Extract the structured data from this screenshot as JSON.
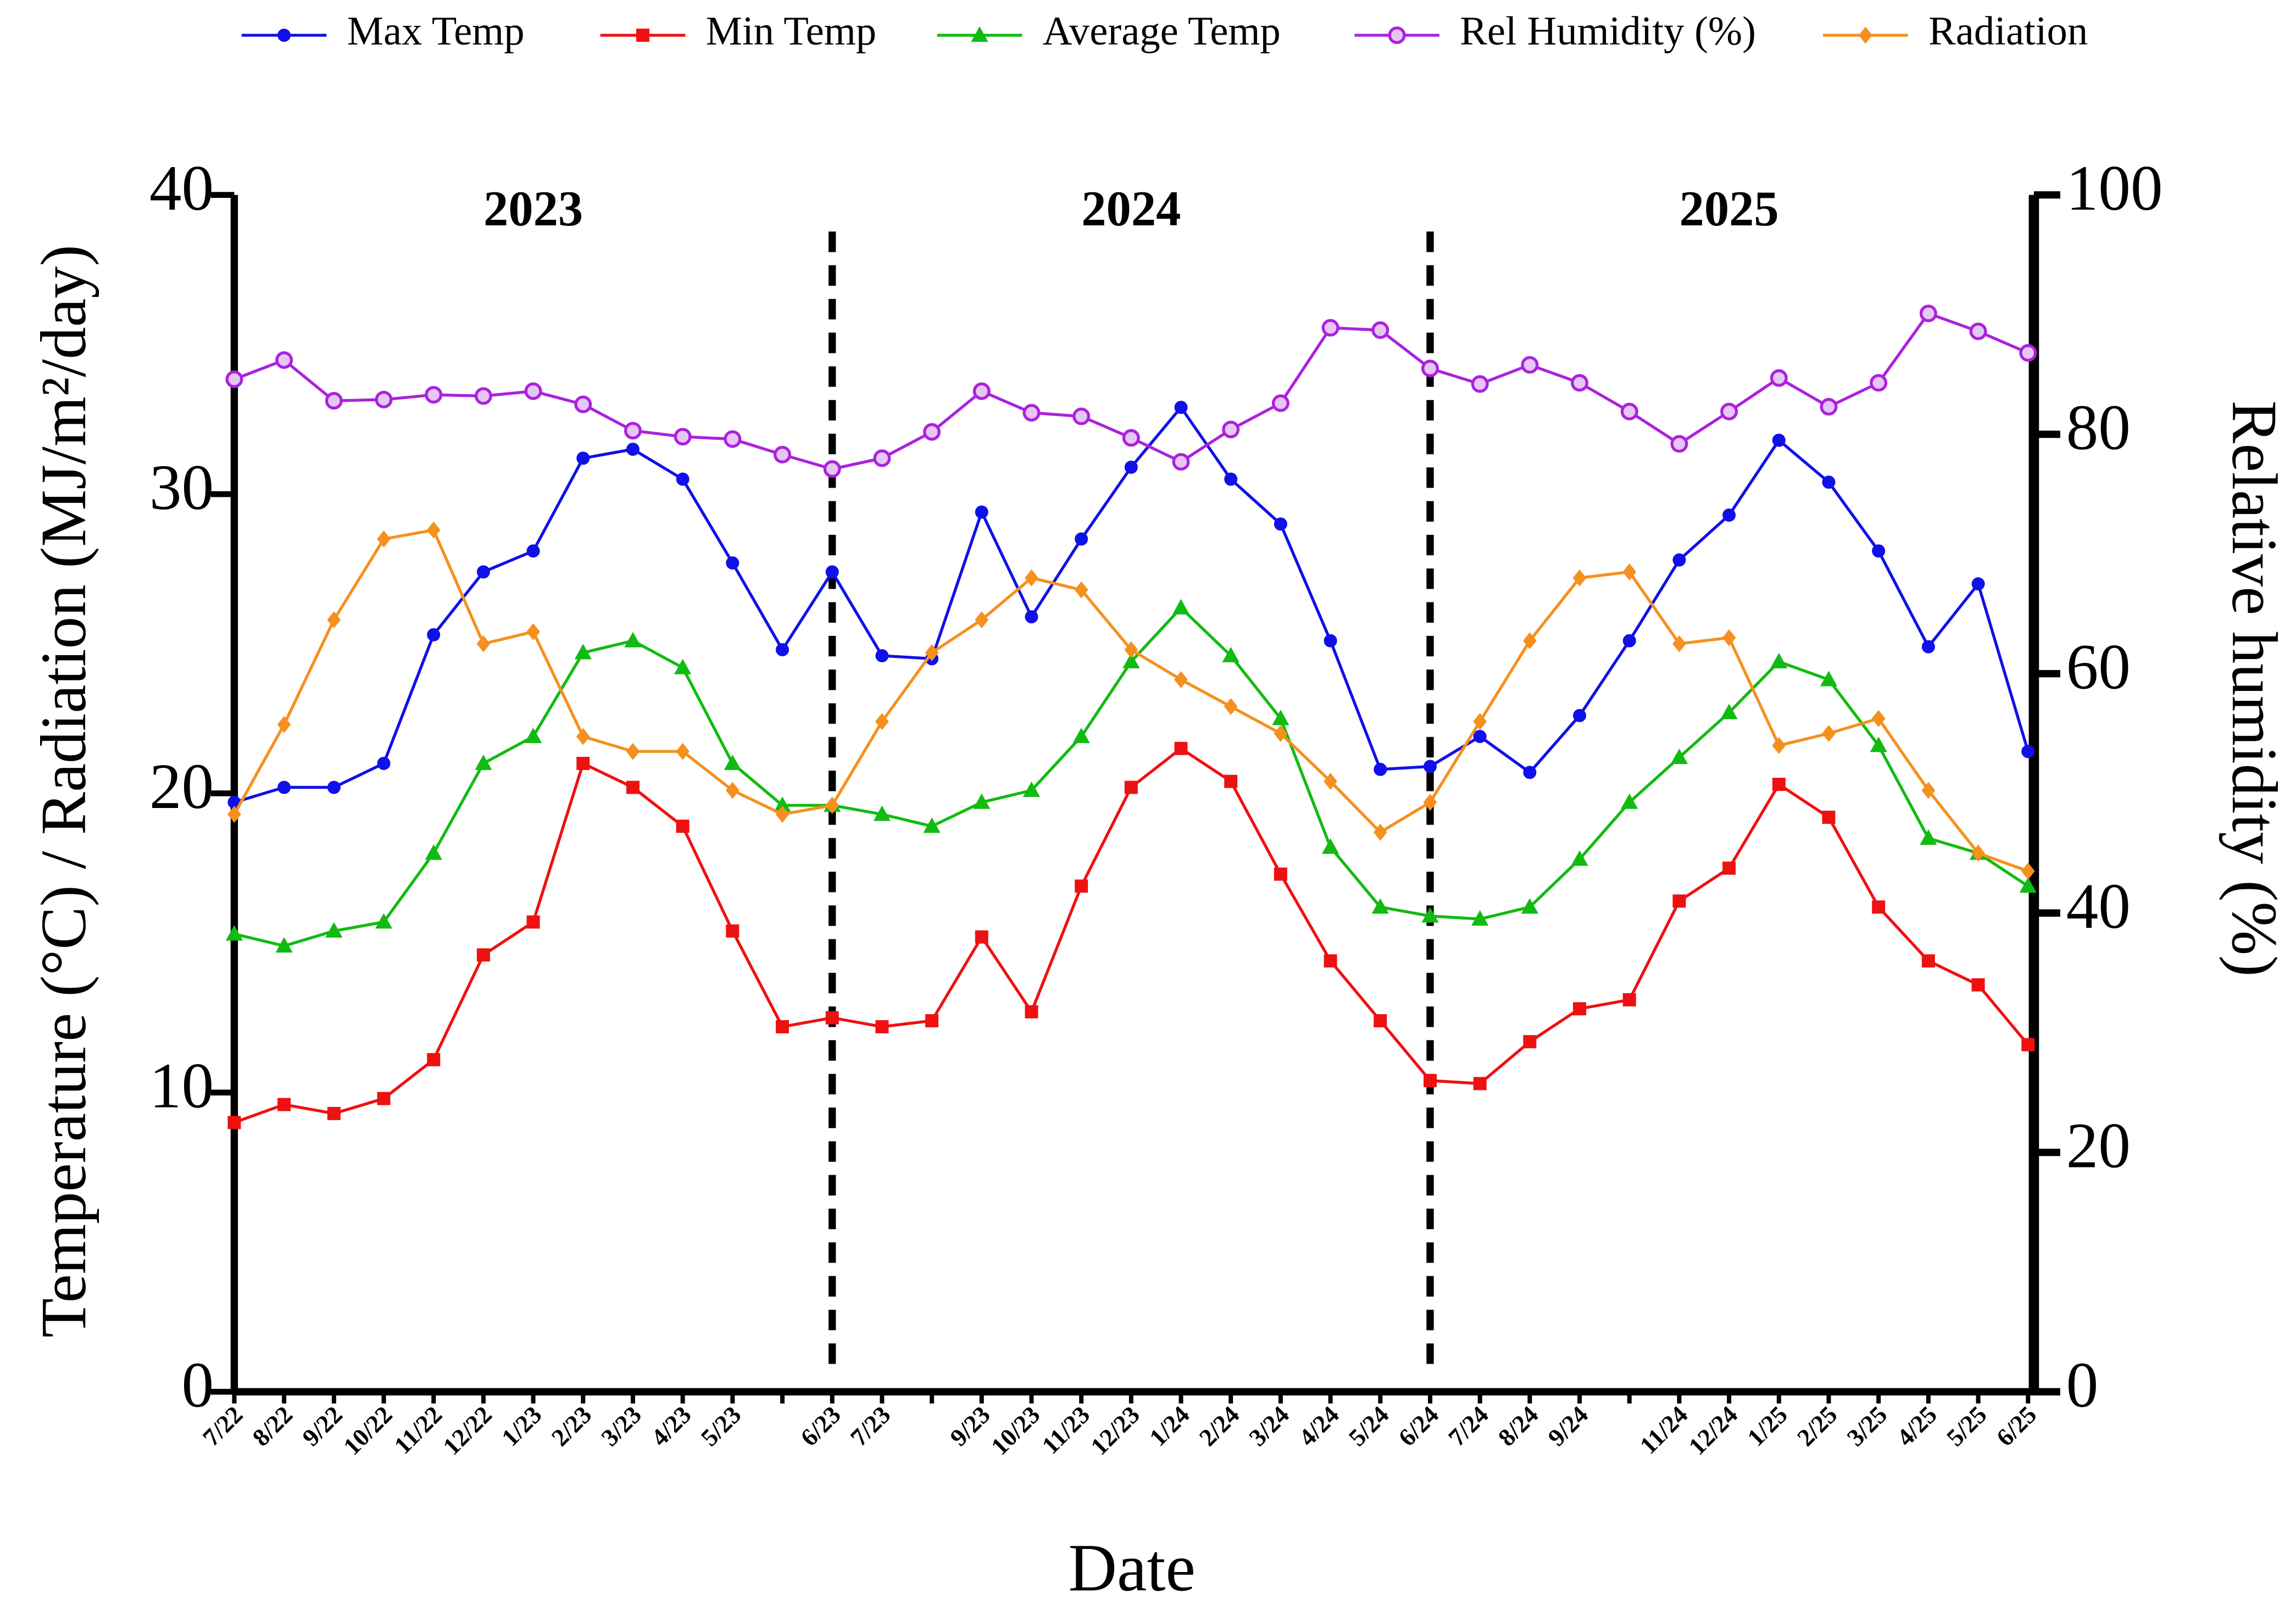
{
  "chart_data": {
    "type": "line",
    "y_label": "Temperature (°C)  /  Radiation (MJ/m²/day)",
    "y2_label": "Relative humidity (%)",
    "x_label": "Date",
    "annotations": [
      "2023",
      "2024",
      "2025"
    ],
    "categories": [
      "7/22",
      "8/22",
      "9/22",
      "10/22",
      "11/22",
      "12/22",
      "1/23",
      "2/23",
      "3/23",
      "4/23",
      "5/23",
      null,
      "6/23",
      "7/23",
      null,
      "9/23",
      "10/23",
      "11/23",
      "12/23",
      "1/24",
      "2/24",
      "3/24",
      "4/24",
      "5/24",
      "6/24",
      "7/24",
      "8/24",
      "9/24",
      null,
      "11/24",
      "12/24",
      "1/25",
      "2/25",
      "3/25",
      "4/25",
      "5/25",
      "6/25"
    ],
    "ylim": [
      0,
      40
    ],
    "yticks": [
      0,
      10,
      20,
      30,
      40
    ],
    "y2lim": [
      0,
      100
    ],
    "y2ticks": [
      0,
      20,
      40,
      60,
      80,
      100
    ],
    "series": [
      {
        "name": "Max Temp",
        "color": "#1010e8",
        "marker": "circle",
        "values": [
          19.7,
          20.2,
          20.2,
          21.0,
          25.3,
          27.4,
          28.1,
          31.2,
          31.5,
          30.5,
          27.7,
          24.8,
          27.4,
          24.6,
          24.5,
          29.4,
          25.9,
          28.5,
          30.9,
          32.9,
          30.5,
          29.0,
          25.1,
          20.8,
          20.9,
          21.9,
          20.7,
          22.6,
          25.1,
          27.8,
          29.3,
          31.8,
          30.4,
          28.1,
          24.9,
          27.0,
          21.4
        ]
      },
      {
        "name": "Min Temp",
        "color": "#ee1111",
        "marker": "square",
        "values": [
          9.0,
          9.6,
          9.3,
          9.8,
          11.1,
          14.6,
          15.7,
          21.0,
          20.2,
          18.9,
          15.4,
          12.2,
          12.5,
          12.2,
          12.4,
          15.2,
          12.7,
          16.9,
          20.2,
          21.5,
          20.4,
          17.3,
          14.4,
          12.4,
          10.4,
          10.3,
          11.7,
          12.8,
          13.1,
          16.4,
          17.5,
          20.3,
          19.2,
          16.2,
          14.4,
          13.6,
          11.6
        ]
      },
      {
        "name": "Average Temp",
        "color": "#11bb11",
        "marker": "triangle",
        "values": [
          15.3,
          14.9,
          15.4,
          15.7,
          18.0,
          21.0,
          21.9,
          24.7,
          25.1,
          24.2,
          21.0,
          19.6,
          19.6,
          19.3,
          18.9,
          19.7,
          20.1,
          21.9,
          24.4,
          26.2,
          24.6,
          22.5,
          18.2,
          16.2,
          15.9,
          15.8,
          16.2,
          17.8,
          19.7,
          21.2,
          22.7,
          24.4,
          23.8,
          21.6,
          18.5,
          18.0,
          16.9
        ]
      },
      {
        "name": "Rel Humidity (%)",
        "color": "#aa22dd",
        "marker": "ring",
        "axis": "y2",
        "values": [
          84.6,
          86.2,
          82.8,
          82.9,
          83.3,
          83.2,
          83.6,
          82.5,
          80.3,
          79.8,
          79.6,
          78.3,
          77.1,
          78.0,
          80.2,
          83.6,
          81.8,
          81.5,
          79.7,
          77.7,
          80.4,
          82.6,
          88.9,
          88.7,
          85.5,
          84.2,
          85.8,
          84.3,
          81.9,
          79.2,
          81.9,
          84.7,
          82.3,
          84.3,
          90.1,
          88.6,
          86.8
        ]
      },
      {
        "name": "Radiation",
        "color": "#f5901e",
        "marker": "diamond",
        "values": [
          19.3,
          22.3,
          25.8,
          28.5,
          28.8,
          25.0,
          25.4,
          21.9,
          21.4,
          21.4,
          20.1,
          19.3,
          19.6,
          22.4,
          24.7,
          25.8,
          27.2,
          26.8,
          24.8,
          23.8,
          22.9,
          22.0,
          20.4,
          18.7,
          19.7,
          22.4,
          25.1,
          27.2,
          27.4,
          25.0,
          25.2,
          21.6,
          22.0,
          22.5,
          20.1,
          18.0,
          17.4
        ]
      }
    ]
  }
}
